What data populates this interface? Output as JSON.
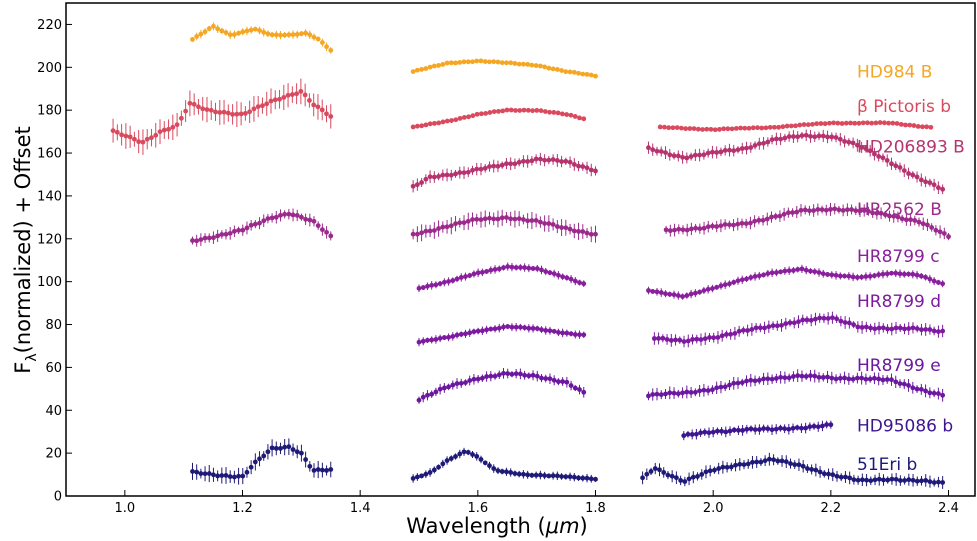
{
  "chart_data": {
    "type": "scatter",
    "xlabel_prefix": "Wavelength (",
    "xlabel_unit": "μm",
    "xlabel_suffix": ")",
    "ylabel_main": "F",
    "ylabel_sub": "λ",
    "ylabel_rest": "(normalized) + Offset",
    "xlim": [
      0.9,
      2.445
    ],
    "ylim": [
      0,
      230
    ],
    "x_ticks": [
      1.0,
      1.2,
      1.4,
      1.6,
      1.8,
      2.0,
      2.2,
      2.4
    ],
    "x_tick_labels": [
      "1.0",
      "1.2",
      "1.4",
      "1.6",
      "1.8",
      "2.0",
      "2.2",
      "2.4"
    ],
    "y_ticks": [
      0,
      20,
      40,
      60,
      80,
      100,
      120,
      140,
      160,
      180,
      200,
      220
    ],
    "y_tick_labels": [
      "0",
      "20",
      "40",
      "60",
      "80",
      "100",
      "120",
      "140",
      "160",
      "180",
      "200",
      "220"
    ],
    "grid": false,
    "series": [
      {
        "name": "HD984 B",
        "color": "#f5a623",
        "label_y": 198,
        "bands": [
          {
            "range": [
              1.115,
              1.35
            ],
            "x": [
              1.115,
              1.15,
              1.18,
              1.22,
              1.25,
              1.28,
              1.31,
              1.33,
              1.35
            ],
            "y": [
              213,
              219,
              215,
              218,
              215,
              215,
              216,
              213,
              208
            ],
            "err": 2
          },
          {
            "range": [
              1.49,
              1.8
            ],
            "x": [
              1.49,
              1.55,
              1.6,
              1.65,
              1.7,
              1.75,
              1.8
            ],
            "y": [
              198,
              202,
              203,
              202,
              201,
              198,
              196
            ],
            "err": 0.5
          }
        ]
      },
      {
        "name": "β Pictoris b",
        "color": "#d94a5e",
        "label_y": 182,
        "bands": [
          {
            "range": [
              0.98,
              1.35
            ],
            "x": [
              0.98,
              1.0,
              1.03,
              1.06,
              1.09,
              1.11,
              1.14,
              1.2,
              1.25,
              1.3,
              1.32,
              1.35
            ],
            "y": [
              170,
              168,
              165,
              170,
              173,
              183,
              180,
              178,
              184,
              189,
              183,
              177
            ],
            "err": 6
          },
          {
            "range": [
              1.49,
              1.78
            ],
            "x": [
              1.49,
              1.55,
              1.6,
              1.65,
              1.7,
              1.75,
              1.78
            ],
            "y": [
              172,
              175,
              178,
              180,
              180,
              178,
              176
            ],
            "err": 1
          },
          {
            "range": [
              1.91,
              2.37
            ],
            "x": [
              1.91,
              2.0,
              2.1,
              2.2,
              2.3,
              2.37
            ],
            "y": [
              172,
              171,
              172,
              174,
              174,
              172
            ],
            "err": 0.8
          }
        ]
      },
      {
        "name": "HD206893 B",
        "color": "#b5336e",
        "label_y": 163,
        "bands": [
          {
            "range": [
              1.49,
              1.8
            ],
            "x": [
              1.49,
              1.52,
              1.58,
              1.65,
              1.7,
              1.75,
              1.8
            ],
            "y": [
              144,
              149,
              151,
              155,
              157,
              156,
              152
            ],
            "err": 3
          },
          {
            "range": [
              1.89,
              2.39
            ],
            "x": [
              1.89,
              1.95,
              2.0,
              2.05,
              2.1,
              2.15,
              2.2,
              2.25,
              2.3,
              2.35,
              2.39
            ],
            "y": [
              162,
              158,
              160,
              162,
              166,
              168,
              168,
              163,
              156,
              148,
              143
            ],
            "err": 3
          }
        ]
      },
      {
        "name": "HR2562 B",
        "color": "#9b2a8c",
        "label_y": 134,
        "bands": [
          {
            "range": [
              1.115,
              1.35
            ],
            "x": [
              1.115,
              1.15,
              1.2,
              1.25,
              1.28,
              1.32,
              1.35
            ],
            "y": [
              119,
              121,
              124,
              130,
              132,
              128,
              121
            ],
            "err": 3
          },
          {
            "range": [
              1.49,
              1.8
            ],
            "x": [
              1.49,
              1.55,
              1.6,
              1.65,
              1.7,
              1.75,
              1.8
            ],
            "y": [
              122,
              126,
              129,
              130,
              128,
              125,
              122
            ],
            "err": 4
          },
          {
            "range": [
              1.92,
              2.4
            ],
            "x": [
              1.92,
              1.98,
              2.05,
              2.1,
              2.15,
              2.2,
              2.25,
              2.3,
              2.35,
              2.4
            ],
            "y": [
              124,
              125,
              127,
              130,
              133,
              134,
              133,
              131,
              128,
              121
            ],
            "err": 3
          }
        ]
      },
      {
        "name": "HR8799 c",
        "color": "#8a1f9e",
        "label_y": 112,
        "bands": [
          {
            "range": [
              1.5,
              1.78
            ],
            "x": [
              1.5,
              1.55,
              1.6,
              1.65,
              1.7,
              1.75,
              1.78
            ],
            "y": [
              97,
              100,
              104,
              107,
              106,
              102,
              99
            ],
            "err": 2
          },
          {
            "range": [
              1.89,
              2.39
            ],
            "x": [
              1.89,
              1.95,
              2.0,
              2.05,
              2.1,
              2.15,
              2.2,
              2.25,
              2.3,
              2.35,
              2.39
            ],
            "y": [
              96,
              93,
              97,
              101,
              104,
              106,
              103,
              102,
              104,
              103,
              99
            ],
            "err": 2
          }
        ]
      },
      {
        "name": "HR8799 d",
        "color": "#7d1aa0",
        "label_y": 91,
        "bands": [
          {
            "range": [
              1.5,
              1.78
            ],
            "x": [
              1.5,
              1.55,
              1.6,
              1.65,
              1.7,
              1.75,
              1.78
            ],
            "y": [
              72,
              74,
              77,
              79,
              78,
              76,
              75
            ],
            "err": 2
          },
          {
            "range": [
              1.9,
              2.39
            ],
            "x": [
              1.9,
              1.95,
              2.0,
              2.05,
              2.1,
              2.15,
              2.2,
              2.25,
              2.3,
              2.35,
              2.39
            ],
            "y": [
              74,
              72,
              74,
              77,
              79,
              82,
              83,
              79,
              78,
              78,
              77
            ],
            "err": 3
          }
        ]
      },
      {
        "name": "HR8799 e",
        "color": "#6b17a0",
        "label_y": 61,
        "bands": [
          {
            "range": [
              1.5,
              1.78
            ],
            "x": [
              1.5,
              1.55,
              1.6,
              1.65,
              1.7,
              1.75,
              1.78
            ],
            "y": [
              45,
              51,
              55,
              57,
              56,
              53,
              48
            ],
            "err": 2.5
          },
          {
            "range": [
              1.89,
              2.39
            ],
            "x": [
              1.89,
              1.95,
              2.0,
              2.05,
              2.1,
              2.15,
              2.2,
              2.25,
              2.3,
              2.35,
              2.39
            ],
            "y": [
              47,
              48,
              50,
              53,
              55,
              56,
              55,
              55,
              54,
              50,
              47
            ],
            "err": 3
          }
        ]
      },
      {
        "name": "HD95086 b",
        "color": "#3d1590",
        "label_y": 33,
        "bands": [
          {
            "range": [
              1.95,
              2.2
            ],
            "x": [
              1.95,
              2.0,
              2.05,
              2.1,
              2.15,
              2.2
            ],
            "y": [
              28,
              30,
              31,
              31,
              32,
              33
            ],
            "err": 2.5
          }
        ]
      },
      {
        "name": "51Eri b",
        "color": "#1f1a78",
        "label_y": 15,
        "bands": [
          {
            "range": [
              1.115,
              1.35
            ],
            "x": [
              1.115,
              1.15,
              1.2,
              1.22,
              1.25,
              1.28,
              1.3,
              1.32,
              1.35
            ],
            "y": [
              11,
              10,
              9,
              15,
              22,
              23,
              20,
              12,
              12
            ],
            "err": 4
          },
          {
            "range": [
              1.49,
              1.8
            ],
            "x": [
              1.49,
              1.52,
              1.55,
              1.58,
              1.6,
              1.63,
              1.68,
              1.75,
              1.8
            ],
            "y": [
              8,
              11,
              17,
              21,
              18,
              12,
              10,
              9,
              8
            ],
            "err": 2
          },
          {
            "range": [
              1.88,
              2.39
            ],
            "x": [
              1.88,
              1.9,
              1.95,
              2.0,
              2.05,
              2.1,
              2.15,
              2.2,
              2.25,
              2.3,
              2.35,
              2.39
            ],
            "y": [
              8,
              13,
              7,
              12,
              15,
              17,
              14,
              10,
              7,
              8,
              7,
              6
            ],
            "err": 3
          }
        ]
      }
    ]
  }
}
